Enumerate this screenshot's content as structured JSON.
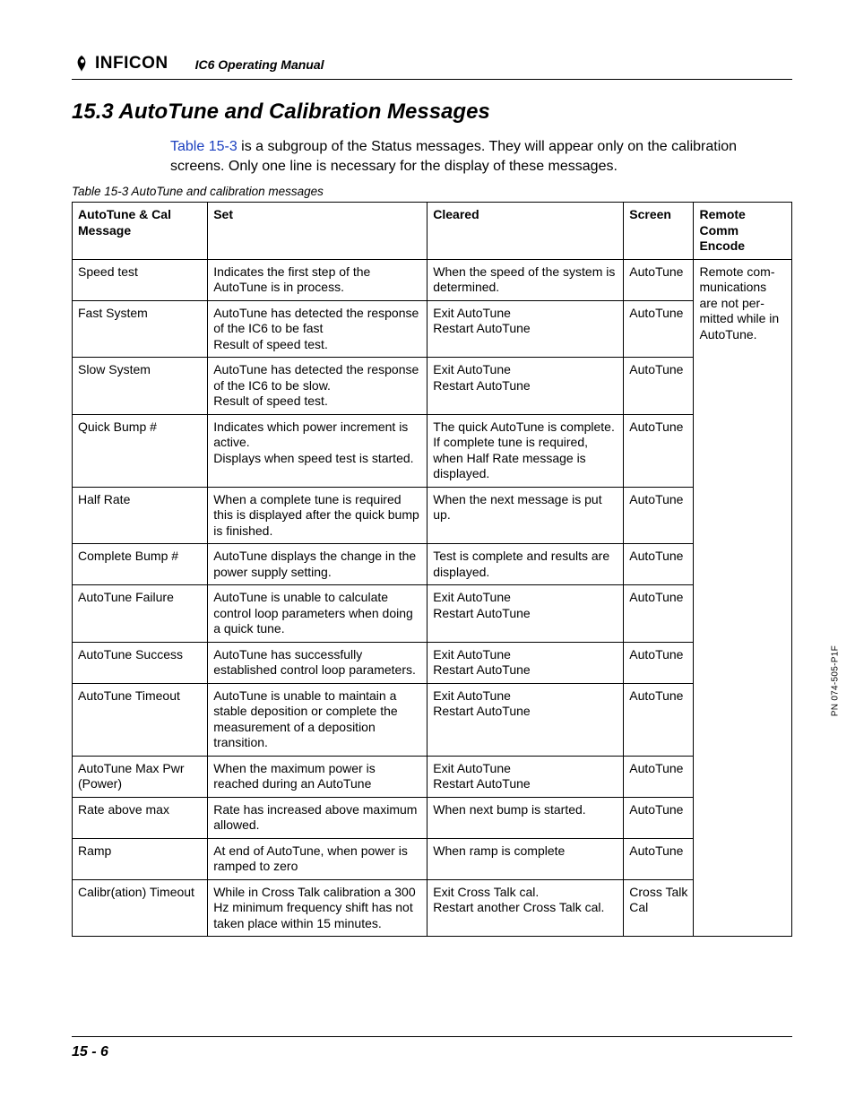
{
  "header": {
    "brand": "INFICON",
    "manual_title": "IC6 Operating Manual"
  },
  "section": {
    "title": "15.3  AutoTune and Calibration Messages",
    "intro_ref": "Table 15-3",
    "intro_rest": " is a subgroup of the Status messages. They will appear only on the calibration screens. Only one line is necessary for the display of these messages."
  },
  "table": {
    "caption": "Table 15-3  AutoTune and calibration messages",
    "headers": {
      "c0": "AutoTune & Cal Message",
      "c1": "Set",
      "c2": "Cleared",
      "c3": "Screen",
      "c4": "Remote Comm Encode"
    },
    "remote_note": "Remote com­munications are not per­mitted while in AutoTune.",
    "rows": [
      {
        "msg": "Speed test",
        "set": "Indicates the first step of the AutoTune is in process.",
        "cleared": "When the speed of the system is determined.",
        "screen": "AutoTune"
      },
      {
        "msg": "Fast System",
        "set": "AutoTune has detected the response of the IC6 to be fast\nResult of speed test.",
        "cleared": "Exit AutoTune\nRestart AutoTune",
        "screen": "AutoTune"
      },
      {
        "msg": "Slow System",
        "set": "AutoTune has detected the response of the IC6 to be slow.\nResult of speed test.",
        "cleared": "Exit AutoTune\nRestart AutoTune",
        "screen": "AutoTune"
      },
      {
        "msg": "Quick Bump #",
        "set": "Indicates which power increment is active.\nDisplays when speed test is started.",
        "cleared": "The quick AutoTune is complete. If complete tune is required, when Half Rate message is displayed.",
        "screen": "AutoTune"
      },
      {
        "msg": "Half Rate",
        "set": "When a complete tune is required this is displayed after the quick bump is finished.",
        "cleared": "When the next message is put up.",
        "screen": "AutoTune"
      },
      {
        "msg": "Complete Bump #",
        "set": "AutoTune displays the change in the power supply setting.",
        "cleared": "Test is complete and results are displayed.",
        "screen": "AutoTune"
      },
      {
        "msg": "AutoTune Failure",
        "set": "AutoTune is unable to calculate control loop parameters when doing a quick tune.",
        "cleared": "Exit AutoTune\nRestart AutoTune",
        "screen": "AutoTune"
      },
      {
        "msg": "AutoTune Success",
        "set": "AutoTune has successfully established control loop parameters.",
        "cleared": "Exit AutoTune\nRestart AutoTune",
        "screen": "AutoTune"
      },
      {
        "msg": "AutoTune Timeout",
        "set": "AutoTune is unable to maintain a stable deposition or complete the measurement of a deposition transition.",
        "cleared": "Exit AutoTune\nRestart AutoTune",
        "screen": "AutoTune"
      },
      {
        "msg": "AutoTune Max Pwr (Power)",
        "set": "When the maximum power is reached during an AutoTune",
        "cleared": "Exit AutoTune\nRestart AutoTune",
        "screen": "AutoTune"
      },
      {
        "msg": "Rate above max",
        "set": "Rate has increased above maximum allowed.",
        "cleared": "When next bump is started.",
        "screen": "AutoTune"
      },
      {
        "msg": "Ramp",
        "set": "At end of AutoTune, when power is ramped to zero",
        "cleared": "When ramp is complete",
        "screen": "AutoTune"
      },
      {
        "msg": "Calibr(ation) Timeout",
        "set": "While in Cross Talk calibration a 300 Hz minimum frequency shift has not taken place within 15 minutes.",
        "cleared": "Exit Cross Talk cal.\nRestart another Cross Talk cal.",
        "screen": "Cross Talk Cal"
      }
    ]
  },
  "side_pn": "PN 074-505-P1F",
  "footer": {
    "page": "15 - 6"
  },
  "colors": {
    "link": "#1a3fbf"
  }
}
